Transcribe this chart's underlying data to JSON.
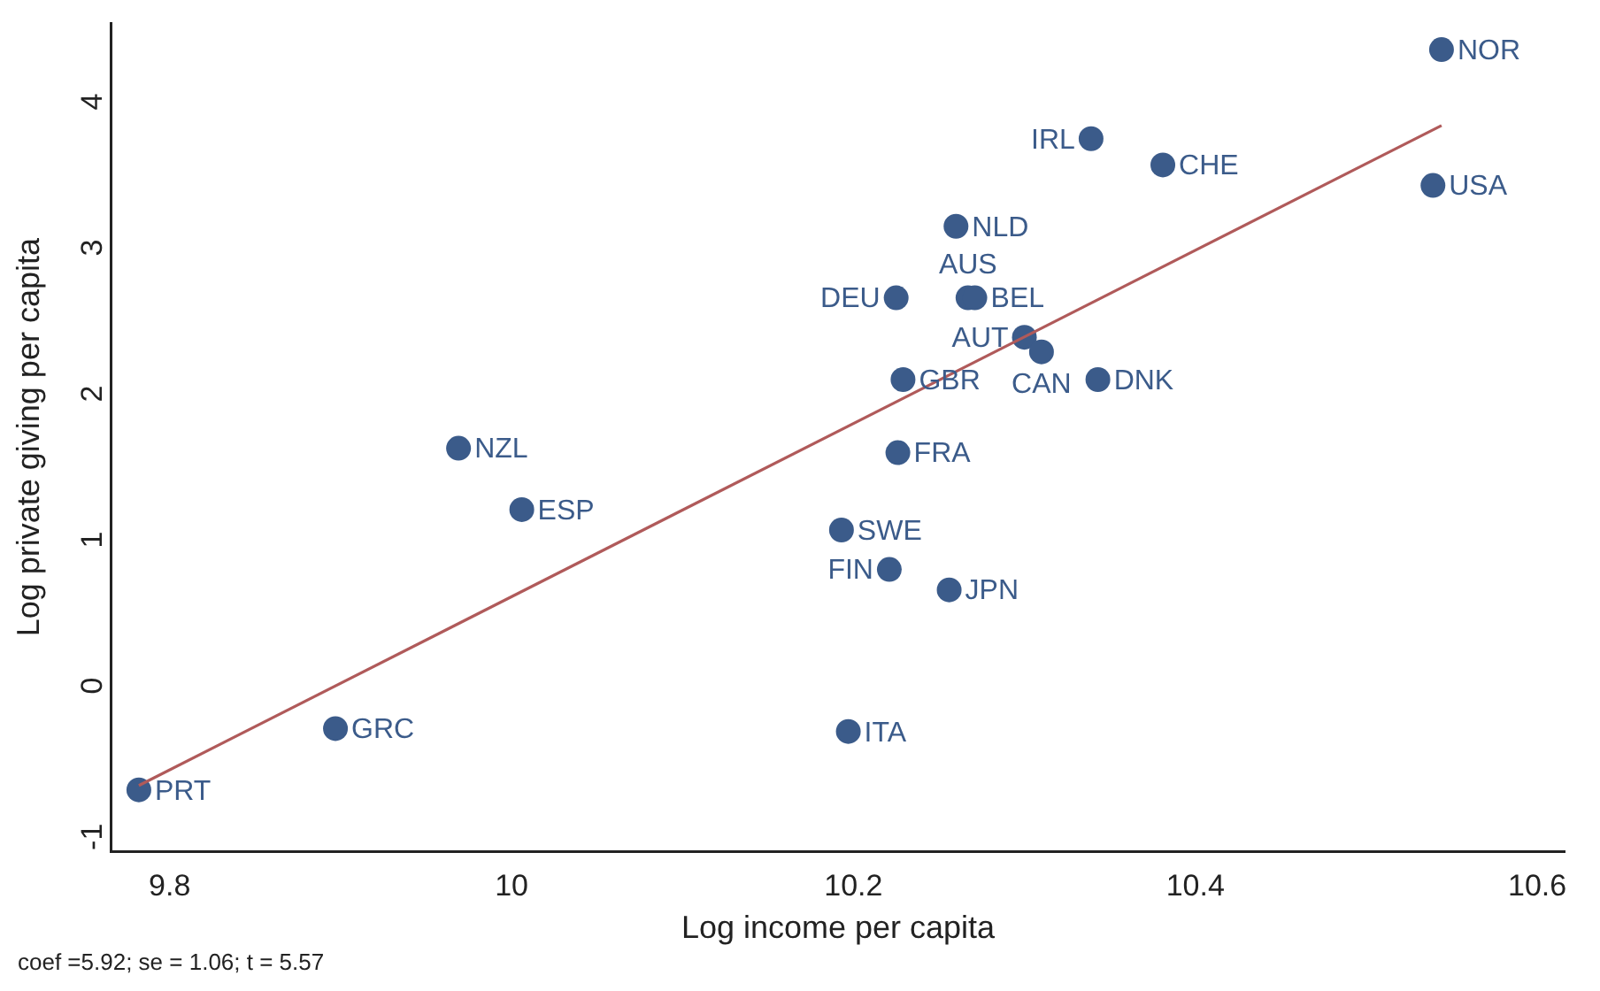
{
  "chart_data": {
    "type": "scatter",
    "xlabel": "Log income per capita",
    "ylabel": "Log private giving per capita",
    "annotations": [
      "coef =5.92; se = 1.06; t = 5.57"
    ],
    "xlim": [
      9.766,
      10.616
    ],
    "ylim": [
      -1.19,
      4.48
    ],
    "xticks": [
      9.8,
      10,
      10.2,
      10.4,
      10.6
    ],
    "yticks": [
      -1,
      0,
      1,
      2,
      3,
      4
    ],
    "grid": false,
    "legend": false,
    "marker": "circle",
    "series": [
      {
        "color": "#3b5b8a",
        "x": [
          10.544,
          10.339,
          10.381,
          10.539,
          10.26,
          10.225,
          10.267,
          10.271,
          10.3,
          10.31,
          10.229,
          10.343,
          10.226,
          9.969,
          10.006,
          10.193,
          10.221,
          10.256,
          9.897,
          10.197,
          9.782
        ],
        "values": [
          4.3,
          3.69,
          3.51,
          3.37,
          3.09,
          2.6,
          2.6,
          2.6,
          2.33,
          2.23,
          2.04,
          2.04,
          1.54,
          1.57,
          1.15,
          1.01,
          0.74,
          0.6,
          -0.35,
          -0.37,
          -0.77
        ],
        "value_labels": [
          "NOR",
          "IRL",
          "CHE",
          "USA",
          "NLD",
          "DEU",
          "AUS",
          "BEL",
          "AUT",
          "CAN",
          "GBR",
          "DNK",
          "FRA",
          "NZL",
          "ESP",
          "SWE",
          "FIN",
          "JPN",
          "GRC",
          "ITA",
          "PRT"
        ]
      },
      {
        "type": "line",
        "color": "#b05a5a",
        "x": [
          9.782,
          10.544
        ],
        "values": [
          -0.74,
          3.78
        ],
        "marker": "none"
      }
    ]
  }
}
